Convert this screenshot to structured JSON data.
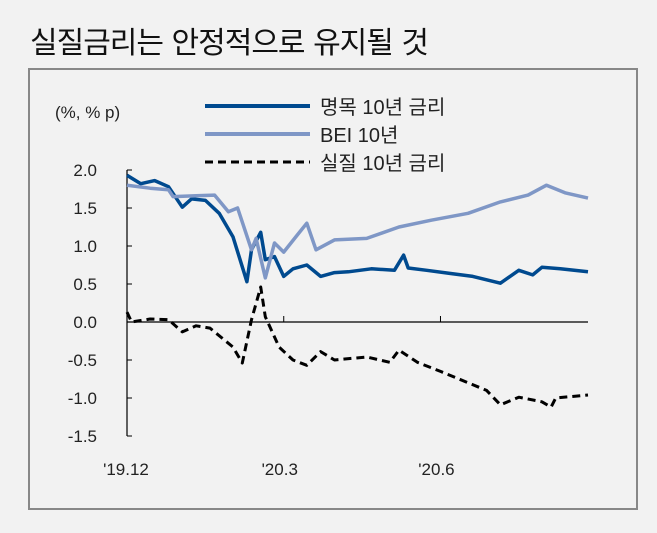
{
  "title": "실질금리는 안정적으로 유지될 것",
  "chart_data": {
    "type": "line",
    "title": "실질금리는 안정적으로 유지될 것",
    "ylabel": "(%, % p)",
    "xlabel": "",
    "ylim": [
      -1.5,
      2.0
    ],
    "yticks": [
      2.0,
      1.5,
      1.0,
      0.5,
      0.0,
      -0.5,
      -1.0,
      -1.5
    ],
    "ytick_labels": [
      "2.0",
      "1.5",
      "1.0",
      "0.5",
      "0.0",
      "-0.5",
      "-1.0",
      "-1.5"
    ],
    "xlim": [
      0,
      100
    ],
    "xticks": [
      {
        "x": 0,
        "label": "'19.12"
      },
      {
        "x": 34,
        "label": "'20.3"
      },
      {
        "x": 68,
        "label": "'20.6"
      }
    ],
    "legend_placement": "top",
    "series": [
      {
        "name": "명목 10년 금리",
        "color": "#004a8f",
        "style": "solid",
        "points": [
          [
            0,
            1.93
          ],
          [
            3,
            1.82
          ],
          [
            6,
            1.86
          ],
          [
            9,
            1.78
          ],
          [
            12,
            1.51
          ],
          [
            14,
            1.62
          ],
          [
            17,
            1.6
          ],
          [
            20,
            1.43
          ],
          [
            23,
            1.12
          ],
          [
            26,
            0.53
          ],
          [
            27,
            0.95
          ],
          [
            29,
            1.18
          ],
          [
            30,
            0.82
          ],
          [
            32,
            0.86
          ],
          [
            34,
            0.6
          ],
          [
            36,
            0.7
          ],
          [
            39,
            0.75
          ],
          [
            42,
            0.6
          ],
          [
            45,
            0.65
          ],
          [
            48,
            0.66
          ],
          [
            53,
            0.7
          ],
          [
            58,
            0.68
          ],
          [
            60,
            0.88
          ],
          [
            61,
            0.71
          ],
          [
            65,
            0.68
          ],
          [
            70,
            0.64
          ],
          [
            75,
            0.6
          ],
          [
            81,
            0.51
          ],
          [
            85,
            0.68
          ],
          [
            88,
            0.62
          ],
          [
            90,
            0.72
          ],
          [
            94,
            0.7
          ],
          [
            100,
            0.66
          ]
        ]
      },
      {
        "name": "BEI 10년",
        "color": "#7f97c6",
        "style": "solid",
        "points": [
          [
            0,
            1.8
          ],
          [
            5,
            1.76
          ],
          [
            9,
            1.74
          ],
          [
            10,
            1.65
          ],
          [
            15,
            1.66
          ],
          [
            19,
            1.67
          ],
          [
            22,
            1.45
          ],
          [
            24,
            1.5
          ],
          [
            27,
            0.95
          ],
          [
            28,
            1.1
          ],
          [
            30,
            0.58
          ],
          [
            32,
            1.04
          ],
          [
            34,
            0.92
          ],
          [
            37,
            1.15
          ],
          [
            39,
            1.3
          ],
          [
            41,
            0.95
          ],
          [
            45,
            1.08
          ],
          [
            52,
            1.1
          ],
          [
            59,
            1.25
          ],
          [
            66,
            1.34
          ],
          [
            74,
            1.43
          ],
          [
            81,
            1.58
          ],
          [
            87,
            1.67
          ],
          [
            91,
            1.8
          ],
          [
            95,
            1.7
          ],
          [
            100,
            1.63
          ]
        ]
      },
      {
        "name": "실질 10년 금리",
        "color": "#000000",
        "style": "dashed",
        "points": [
          [
            0,
            0.13
          ],
          [
            1,
            0.0
          ],
          [
            5,
            0.04
          ],
          [
            9,
            0.03
          ],
          [
            12,
            -0.13
          ],
          [
            15,
            -0.05
          ],
          [
            18,
            -0.08
          ],
          [
            23,
            -0.33
          ],
          [
            25,
            -0.54
          ],
          [
            27,
            0.03
          ],
          [
            29,
            0.46
          ],
          [
            30,
            0.07
          ],
          [
            33,
            -0.33
          ],
          [
            36,
            -0.5
          ],
          [
            39,
            -0.57
          ],
          [
            42,
            -0.39
          ],
          [
            45,
            -0.5
          ],
          [
            52,
            -0.46
          ],
          [
            57,
            -0.53
          ],
          [
            59,
            -0.37
          ],
          [
            63,
            -0.53
          ],
          [
            68,
            -0.65
          ],
          [
            74,
            -0.8
          ],
          [
            78,
            -0.9
          ],
          [
            81,
            -1.09
          ],
          [
            85,
            -0.99
          ],
          [
            90,
            -1.05
          ],
          [
            92,
            -1.12
          ],
          [
            93,
            -1.0
          ],
          [
            100,
            -0.96
          ]
        ]
      }
    ]
  }
}
